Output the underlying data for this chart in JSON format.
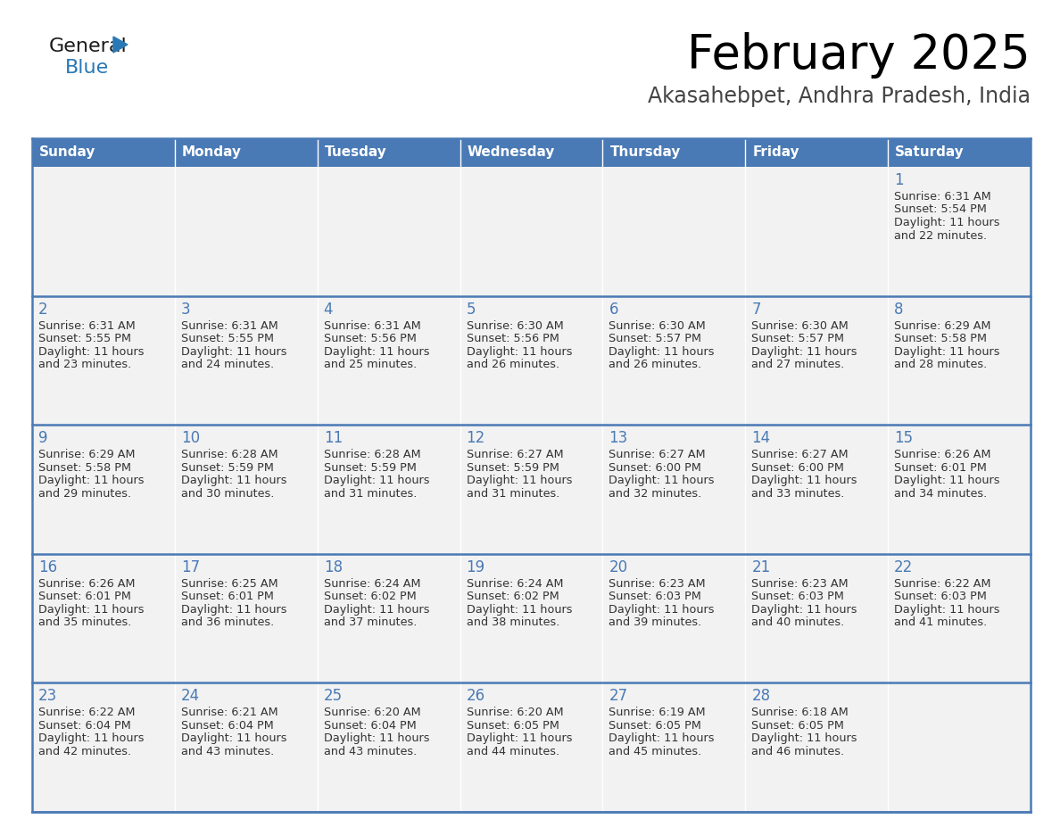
{
  "title": "February 2025",
  "subtitle": "Akasahebpet, Andhra Pradesh, India",
  "days_of_week": [
    "Sunday",
    "Monday",
    "Tuesday",
    "Wednesday",
    "Thursday",
    "Friday",
    "Saturday"
  ],
  "header_bg": "#4a7ab5",
  "header_text": "#FFFFFF",
  "cell_bg": "#f2f2f2",
  "border_color": "#4a7ab5",
  "day_num_color": "#4a7ab5",
  "text_color": "#333333",
  "logo_general_color": "#1a1a1a",
  "logo_blue_color": "#2878b5",
  "logo_triangle_color": "#2878b5",
  "calendar_data": [
    [
      {
        "day": "",
        "sunrise": "",
        "sunset": "",
        "daylight_h": "",
        "daylight_m": ""
      },
      {
        "day": "",
        "sunrise": "",
        "sunset": "",
        "daylight_h": "",
        "daylight_m": ""
      },
      {
        "day": "",
        "sunrise": "",
        "sunset": "",
        "daylight_h": "",
        "daylight_m": ""
      },
      {
        "day": "",
        "sunrise": "",
        "sunset": "",
        "daylight_h": "",
        "daylight_m": ""
      },
      {
        "day": "",
        "sunrise": "",
        "sunset": "",
        "daylight_h": "",
        "daylight_m": ""
      },
      {
        "day": "",
        "sunrise": "",
        "sunset": "",
        "daylight_h": "",
        "daylight_m": ""
      },
      {
        "day": "1",
        "sunrise": "6:31 AM",
        "sunset": "5:54 PM",
        "daylight_h": "11",
        "daylight_m": "22"
      }
    ],
    [
      {
        "day": "2",
        "sunrise": "6:31 AM",
        "sunset": "5:55 PM",
        "daylight_h": "11",
        "daylight_m": "23"
      },
      {
        "day": "3",
        "sunrise": "6:31 AM",
        "sunset": "5:55 PM",
        "daylight_h": "11",
        "daylight_m": "24"
      },
      {
        "day": "4",
        "sunrise": "6:31 AM",
        "sunset": "5:56 PM",
        "daylight_h": "11",
        "daylight_m": "25"
      },
      {
        "day": "5",
        "sunrise": "6:30 AM",
        "sunset": "5:56 PM",
        "daylight_h": "11",
        "daylight_m": "26"
      },
      {
        "day": "6",
        "sunrise": "6:30 AM",
        "sunset": "5:57 PM",
        "daylight_h": "11",
        "daylight_m": "26"
      },
      {
        "day": "7",
        "sunrise": "6:30 AM",
        "sunset": "5:57 PM",
        "daylight_h": "11",
        "daylight_m": "27"
      },
      {
        "day": "8",
        "sunrise": "6:29 AM",
        "sunset": "5:58 PM",
        "daylight_h": "11",
        "daylight_m": "28"
      }
    ],
    [
      {
        "day": "9",
        "sunrise": "6:29 AM",
        "sunset": "5:58 PM",
        "daylight_h": "11",
        "daylight_m": "29"
      },
      {
        "day": "10",
        "sunrise": "6:28 AM",
        "sunset": "5:59 PM",
        "daylight_h": "11",
        "daylight_m": "30"
      },
      {
        "day": "11",
        "sunrise": "6:28 AM",
        "sunset": "5:59 PM",
        "daylight_h": "11",
        "daylight_m": "31"
      },
      {
        "day": "12",
        "sunrise": "6:27 AM",
        "sunset": "5:59 PM",
        "daylight_h": "11",
        "daylight_m": "31"
      },
      {
        "day": "13",
        "sunrise": "6:27 AM",
        "sunset": "6:00 PM",
        "daylight_h": "11",
        "daylight_m": "32"
      },
      {
        "day": "14",
        "sunrise": "6:27 AM",
        "sunset": "6:00 PM",
        "daylight_h": "11",
        "daylight_m": "33"
      },
      {
        "day": "15",
        "sunrise": "6:26 AM",
        "sunset": "6:01 PM",
        "daylight_h": "11",
        "daylight_m": "34"
      }
    ],
    [
      {
        "day": "16",
        "sunrise": "6:26 AM",
        "sunset": "6:01 PM",
        "daylight_h": "11",
        "daylight_m": "35"
      },
      {
        "day": "17",
        "sunrise": "6:25 AM",
        "sunset": "6:01 PM",
        "daylight_h": "11",
        "daylight_m": "36"
      },
      {
        "day": "18",
        "sunrise": "6:24 AM",
        "sunset": "6:02 PM",
        "daylight_h": "11",
        "daylight_m": "37"
      },
      {
        "day": "19",
        "sunrise": "6:24 AM",
        "sunset": "6:02 PM",
        "daylight_h": "11",
        "daylight_m": "38"
      },
      {
        "day": "20",
        "sunrise": "6:23 AM",
        "sunset": "6:03 PM",
        "daylight_h": "11",
        "daylight_m": "39"
      },
      {
        "day": "21",
        "sunrise": "6:23 AM",
        "sunset": "6:03 PM",
        "daylight_h": "11",
        "daylight_m": "40"
      },
      {
        "day": "22",
        "sunrise": "6:22 AM",
        "sunset": "6:03 PM",
        "daylight_h": "11",
        "daylight_m": "41"
      }
    ],
    [
      {
        "day": "23",
        "sunrise": "6:22 AM",
        "sunset": "6:04 PM",
        "daylight_h": "11",
        "daylight_m": "42"
      },
      {
        "day": "24",
        "sunrise": "6:21 AM",
        "sunset": "6:04 PM",
        "daylight_h": "11",
        "daylight_m": "43"
      },
      {
        "day": "25",
        "sunrise": "6:20 AM",
        "sunset": "6:04 PM",
        "daylight_h": "11",
        "daylight_m": "43"
      },
      {
        "day": "26",
        "sunrise": "6:20 AM",
        "sunset": "6:05 PM",
        "daylight_h": "11",
        "daylight_m": "44"
      },
      {
        "day": "27",
        "sunrise": "6:19 AM",
        "sunset": "6:05 PM",
        "daylight_h": "11",
        "daylight_m": "45"
      },
      {
        "day": "28",
        "sunrise": "6:18 AM",
        "sunset": "6:05 PM",
        "daylight_h": "11",
        "daylight_m": "46"
      },
      {
        "day": "",
        "sunrise": "",
        "sunset": "",
        "daylight_h": "",
        "daylight_m": ""
      }
    ]
  ]
}
